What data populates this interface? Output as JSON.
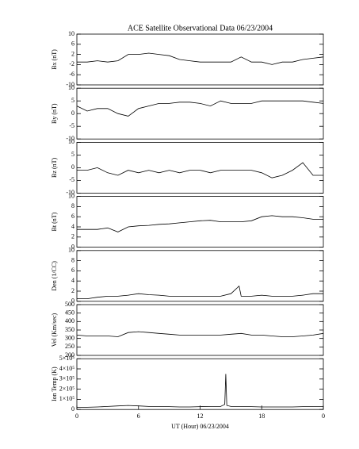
{
  "chart_data": [
    {
      "type": "line",
      "title": "ACE Satellite Observational Data   06/23/2004",
      "ylabel": "Bx (nT)",
      "color": "#000000",
      "x": [
        0,
        1,
        2,
        3,
        4,
        5,
        6,
        7,
        8,
        9,
        10,
        11,
        12,
        13,
        14,
        15,
        16,
        17,
        18,
        19,
        20,
        21,
        22,
        23,
        24
      ],
      "values": [
        -1,
        -1,
        -0.5,
        -1,
        -0.5,
        2,
        2,
        2.5,
        2,
        1.5,
        0,
        -0.5,
        -1,
        -1,
        -1,
        -1,
        1,
        -1,
        -1,
        -2,
        -1,
        -1,
        0,
        0.5,
        1
      ],
      "xlim": [
        0,
        24
      ],
      "ylim": [
        -10,
        10
      ],
      "yticks": [
        -10,
        -6,
        -2,
        2,
        6,
        10
      ]
    },
    {
      "type": "line",
      "ylabel": "By (nT)",
      "color": "#000000",
      "x": [
        0,
        1,
        2,
        3,
        4,
        5,
        6,
        7,
        8,
        9,
        10,
        11,
        12,
        13,
        14,
        15,
        16,
        17,
        18,
        19,
        20,
        21,
        22,
        23,
        24
      ],
      "values": [
        3,
        1,
        2,
        2,
        0,
        -1,
        2,
        3,
        4,
        4,
        4.5,
        4.5,
        4,
        3,
        5,
        4,
        4,
        4,
        5,
        5,
        5,
        5,
        5,
        4.5,
        4
      ],
      "xlim": [
        0,
        24
      ],
      "ylim": [
        -10,
        10
      ],
      "yticks": [
        -10,
        -5,
        0,
        5,
        10
      ]
    },
    {
      "type": "line",
      "ylabel": "Bz (nT)",
      "color": "#000000",
      "x": [
        0,
        1,
        2,
        3,
        4,
        5,
        6,
        7,
        8,
        9,
        10,
        11,
        12,
        13,
        14,
        15,
        16,
        17,
        18,
        19,
        20,
        21,
        22,
        23,
        24
      ],
      "values": [
        -1,
        -1,
        0,
        -2,
        -3,
        -1,
        -2,
        -1,
        -2,
        -1,
        -2,
        -1,
        -1,
        -2,
        -1,
        -1,
        -1,
        -1,
        -2,
        -4,
        -3,
        -1,
        2,
        -3,
        -3
      ],
      "xlim": [
        0,
        24
      ],
      "ylim": [
        -10,
        10
      ],
      "yticks": [
        -10,
        -5,
        0,
        5,
        10
      ]
    },
    {
      "type": "line",
      "ylabel": "Bt (nT)",
      "color": "#000000",
      "x": [
        0,
        1,
        2,
        3,
        4,
        5,
        6,
        7,
        8,
        9,
        10,
        11,
        12,
        13,
        14,
        15,
        16,
        17,
        18,
        19,
        20,
        21,
        22,
        23,
        24
      ],
      "values": [
        3.5,
        3.5,
        3.5,
        3.8,
        3,
        4,
        4.2,
        4.3,
        4.5,
        4.6,
        4.8,
        5,
        5.2,
        5.3,
        5,
        5,
        5,
        5.2,
        6,
        6.2,
        6,
        6,
        5.8,
        5.5,
        5.5
      ],
      "xlim": [
        0,
        24
      ],
      "ylim": [
        0,
        10
      ],
      "yticks": [
        0,
        2,
        4,
        6,
        8,
        10
      ]
    },
    {
      "type": "line",
      "ylabel": "Den (1/CC)",
      "color": "#000000",
      "x": [
        0,
        1,
        2,
        3,
        4,
        5,
        6,
        7,
        8,
        9,
        10,
        11,
        12,
        13,
        14,
        15,
        15.8,
        16,
        17,
        18,
        19,
        20,
        21,
        22,
        23,
        24
      ],
      "values": [
        0.5,
        0.5,
        0.8,
        1,
        1,
        1.2,
        1.5,
        1.3,
        1.2,
        1,
        1,
        1,
        1,
        1,
        1,
        1.5,
        3,
        1,
        1,
        1.2,
        1,
        1,
        1,
        1.2,
        1.5,
        1.5
      ],
      "xlim": [
        0,
        24
      ],
      "ylim": [
        0,
        10
      ],
      "yticks": [
        0,
        2,
        4,
        6,
        8,
        10
      ]
    },
    {
      "type": "line",
      "ylabel": "Vel (Km/sec)",
      "color": "#000000",
      "x": [
        0,
        1,
        2,
        3,
        4,
        5,
        6,
        7,
        8,
        9,
        10,
        11,
        12,
        13,
        14,
        15,
        16,
        17,
        18,
        19,
        20,
        21,
        22,
        23,
        24
      ],
      "values": [
        320,
        315,
        315,
        315,
        310,
        335,
        340,
        335,
        330,
        325,
        320,
        320,
        320,
        320,
        320,
        325,
        330,
        320,
        320,
        315,
        310,
        310,
        315,
        320,
        330
      ],
      "xlim": [
        0,
        24
      ],
      "ylim": [
        200,
        500
      ],
      "yticks": [
        200,
        250,
        300,
        350,
        400,
        450,
        500
      ]
    },
    {
      "type": "line",
      "ylabel": "Ion Temp (K)",
      "xlabel": "UT (Hour)  06/23/2004",
      "color": "#000000",
      "x": [
        0,
        1,
        2,
        3,
        4,
        5,
        6,
        7,
        8,
        9,
        10,
        11,
        12,
        13,
        14,
        14.4,
        14.5,
        14.6,
        15,
        16,
        17,
        18,
        19,
        20,
        21,
        22,
        23,
        24
      ],
      "values": [
        20000,
        22000,
        25000,
        30000,
        35000,
        40000,
        35000,
        30000,
        30000,
        28000,
        25000,
        25000,
        28000,
        30000,
        30000,
        50000,
        350000,
        40000,
        30000,
        30000,
        28000,
        25000,
        25000,
        25000,
        25000,
        28000,
        30000,
        30000
      ],
      "xlim": [
        0,
        24
      ],
      "ylim": [
        0,
        500000
      ],
      "yticks": [
        0,
        {
          "value": 100000,
          "label": "1×10⁵"
        },
        {
          "value": 200000,
          "label": "2×10⁵"
        },
        {
          "value": 300000,
          "label": "3×10⁵"
        },
        {
          "value": 400000,
          "label": "4×10⁵"
        },
        {
          "value": 500000,
          "label": "5×10⁵"
        }
      ],
      "xticks": [
        0,
        6,
        12,
        18,
        {
          "value": 24,
          "label": "0"
        }
      ]
    }
  ]
}
